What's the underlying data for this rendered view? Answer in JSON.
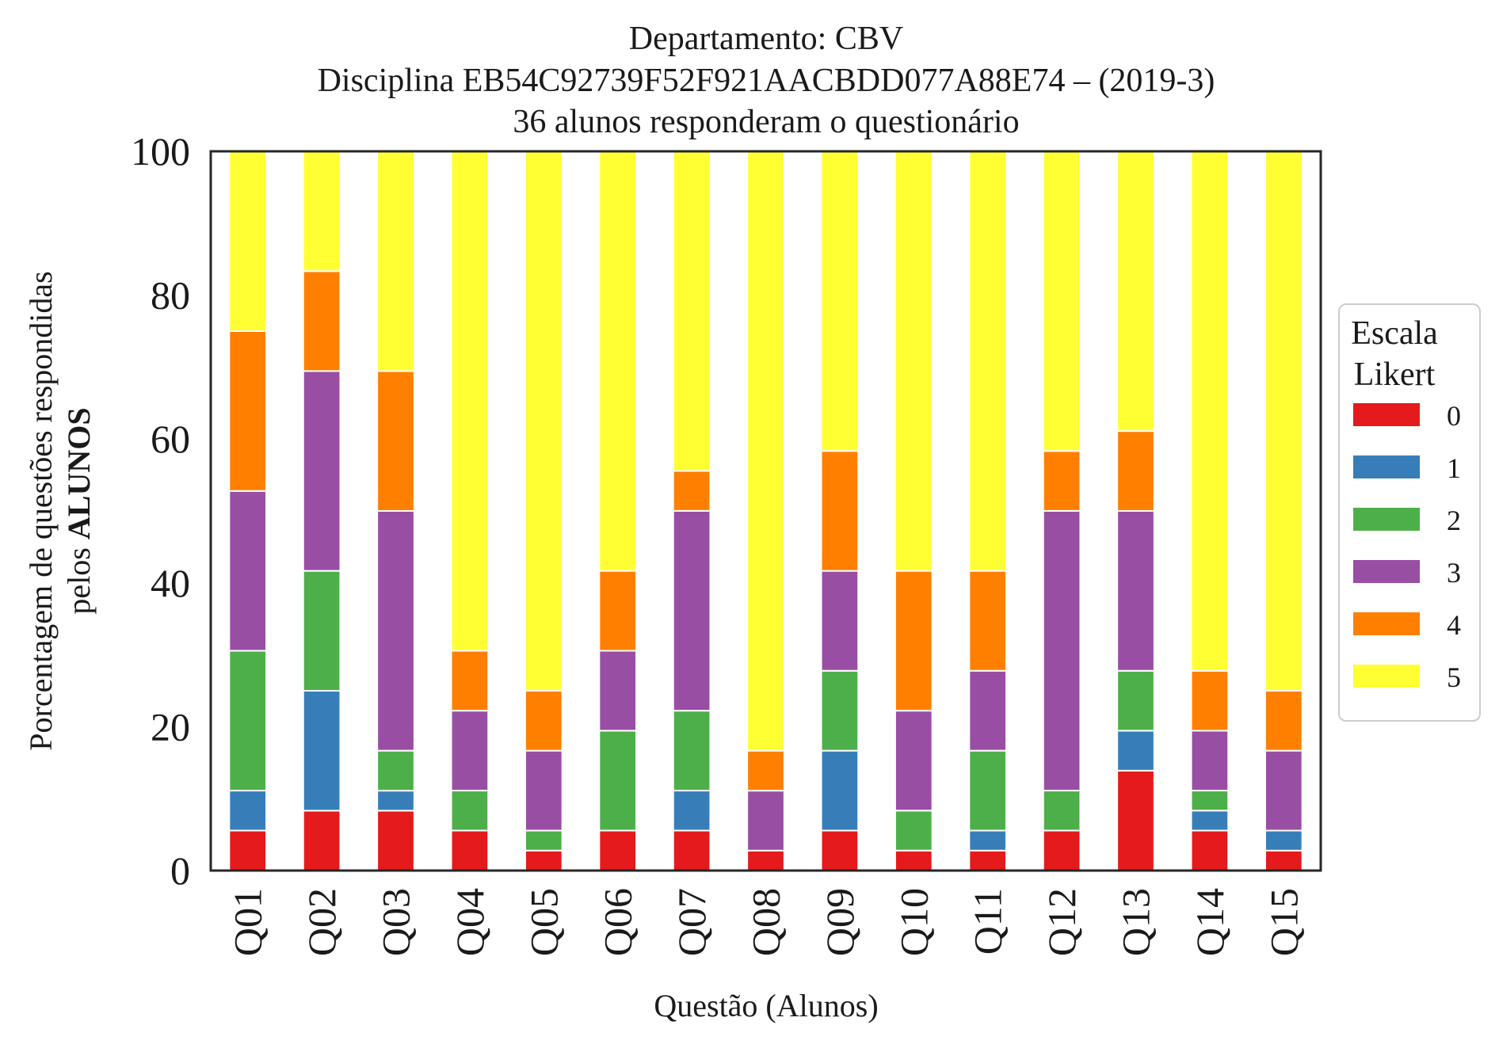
{
  "chart_data": {
    "type": "bar",
    "stacked": true,
    "title": [
      "Departamento: CBV",
      "Disciplina EB54C92739F52F921AACBDD077A88E74 – (2019-3)",
      "36 alunos responderam o questionário"
    ],
    "xlabel": "Questão (Alunos)",
    "ylabel_line1": "Porcentagem de questões respondidas",
    "ylabel_line2_prefix": "pelos ",
    "ylabel_line2_bold": "ALUNOS",
    "ylim": [
      0,
      100
    ],
    "yticks": [
      "0",
      "20",
      "40",
      "60",
      "80",
      "100"
    ],
    "grid": false,
    "legend_position": "right",
    "legend_title": [
      "Escala",
      "Likert"
    ],
    "categories": [
      "Q01",
      "Q02",
      "Q03",
      "Q04",
      "Q05",
      "Q06",
      "Q07",
      "Q08",
      "Q09",
      "Q10",
      "Q11",
      "Q12",
      "Q13",
      "Q14",
      "Q15"
    ],
    "series": [
      {
        "name": "0",
        "color": "#e41a1c",
        "values": [
          5.56,
          8.33,
          8.33,
          5.56,
          2.78,
          5.56,
          5.56,
          2.78,
          5.56,
          2.78,
          2.78,
          5.56,
          13.89,
          5.56,
          2.78
        ]
      },
      {
        "name": "1",
        "color": "#377eb8",
        "values": [
          5.56,
          16.67,
          2.78,
          0,
          0,
          0,
          5.56,
          0,
          11.11,
          0,
          2.78,
          0,
          5.56,
          2.78,
          2.78
        ]
      },
      {
        "name": "2",
        "color": "#4daf4a",
        "values": [
          19.44,
          16.67,
          5.56,
          5.56,
          2.78,
          13.89,
          11.11,
          0,
          11.11,
          5.56,
          11.11,
          5.56,
          8.33,
          2.78,
          0
        ]
      },
      {
        "name": "3",
        "color": "#984ea3",
        "values": [
          22.22,
          27.78,
          33.33,
          11.11,
          11.11,
          11.11,
          27.78,
          8.33,
          13.89,
          13.89,
          11.11,
          38.89,
          22.22,
          8.33,
          11.11
        ]
      },
      {
        "name": "4",
        "color": "#ff7f00",
        "values": [
          22.22,
          13.89,
          19.44,
          8.33,
          8.33,
          11.11,
          5.56,
          5.56,
          16.67,
          19.44,
          13.89,
          8.33,
          11.11,
          8.33,
          8.33
        ]
      },
      {
        "name": "5",
        "color": "#ffff33",
        "values": [
          25.0,
          16.67,
          30.56,
          69.44,
          75.0,
          58.33,
          44.44,
          83.33,
          41.67,
          58.33,
          58.33,
          41.67,
          38.89,
          72.22,
          75.0
        ]
      }
    ]
  }
}
